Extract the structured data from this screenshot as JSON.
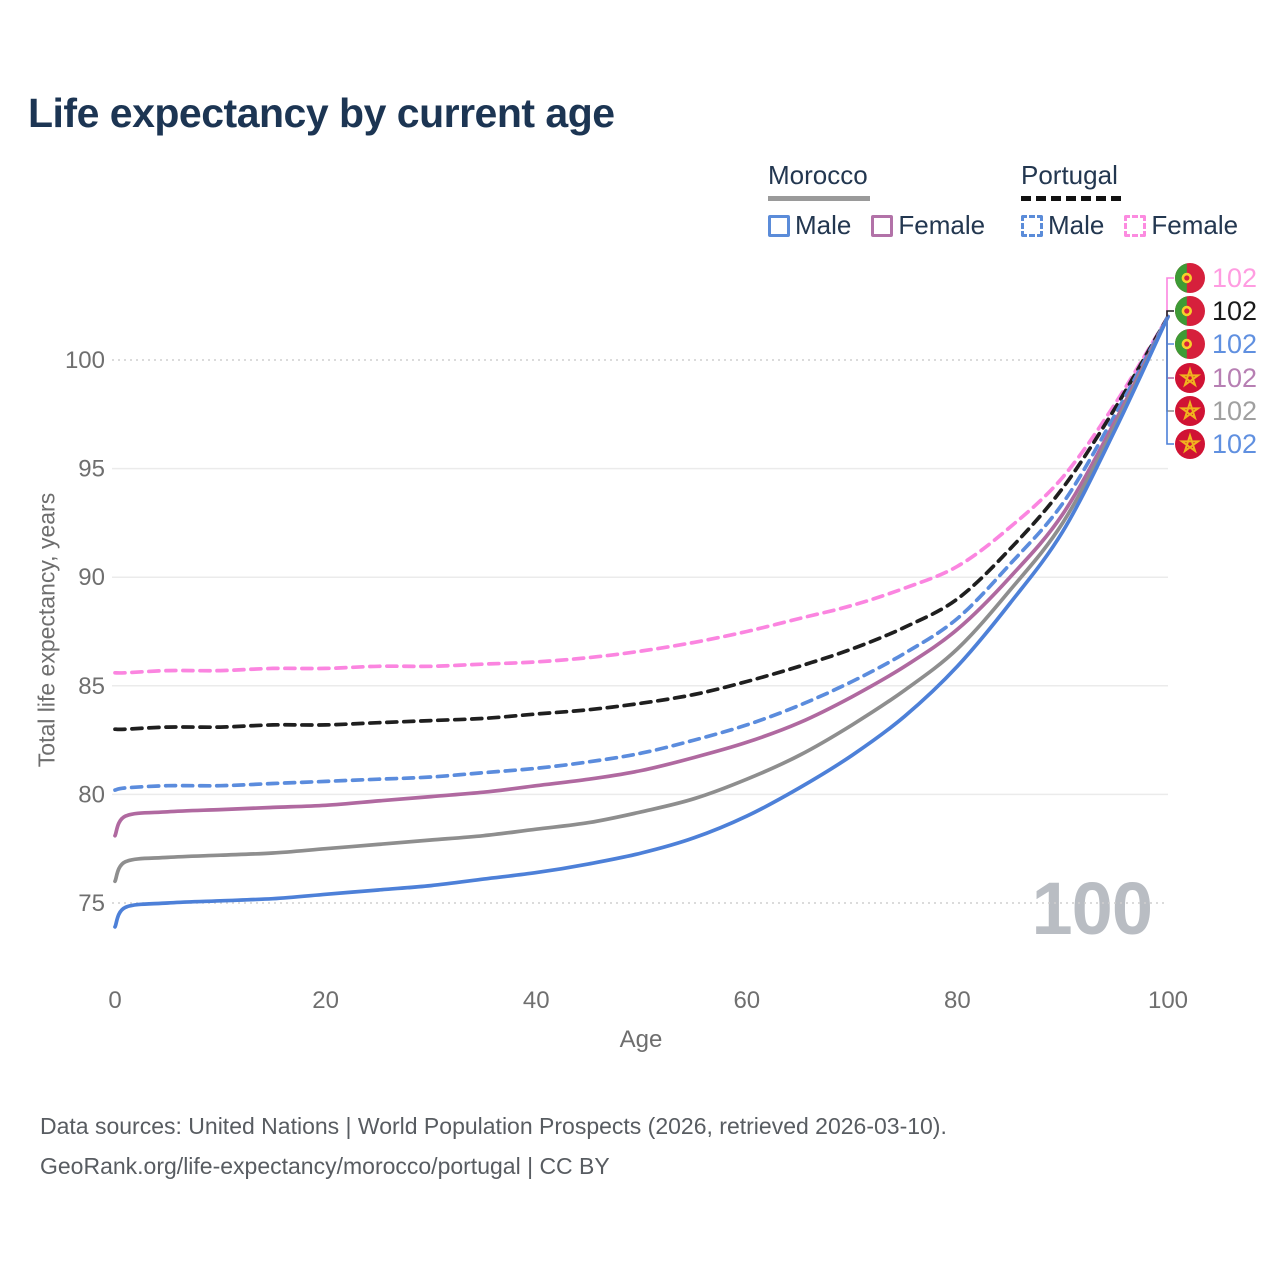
{
  "title": "Life expectancy by current age",
  "legend": {
    "morocco": {
      "label": "Morocco",
      "items": [
        {
          "label": "Male"
        },
        {
          "label": "Female"
        }
      ]
    },
    "portugal": {
      "label": "Portugal",
      "items": [
        {
          "label": "Male"
        },
        {
          "label": "Female"
        }
      ]
    }
  },
  "y_axis": {
    "title": "Total life expectancy, years"
  },
  "x_axis": {
    "title": "Age"
  },
  "watermark": "100",
  "footer": {
    "line1": "Data sources: United Nations | World Population Prospects (2026, retrieved 2026-03-10).",
    "line2": "GeoRank.org/life-expectancy/morocco/portugal | CC BY"
  },
  "colors": {
    "title_text": "#1c3553",
    "legend_text": "#233750",
    "axis_text": "#6e6e6e",
    "tick_text": "#6f6f6f",
    "gridline_solid": "#ebebeb",
    "gridline_dotted": "#cfcfcf",
    "watermark": "#b9bdc3",
    "morocco_underline": "#9a9a9a",
    "portugal_underline": "#111111"
  },
  "chart_data": {
    "type": "line",
    "title": "Life expectancy by current age",
    "xlabel": "Age",
    "ylabel": "Total life expectancy, years",
    "xlim": [
      0,
      100
    ],
    "ylim": [
      73,
      103
    ],
    "xticks": [
      0,
      20,
      40,
      60,
      80,
      100
    ],
    "yticks": [
      75,
      80,
      85,
      90,
      95,
      100
    ],
    "dotted_gridlines": [
      75,
      100
    ],
    "grid": true,
    "legend_position": "top-right",
    "x": [
      0,
      1,
      5,
      10,
      15,
      20,
      25,
      30,
      35,
      40,
      45,
      50,
      55,
      60,
      65,
      70,
      75,
      80,
      85,
      90,
      95,
      100
    ],
    "series": [
      {
        "name": "Portugal Female",
        "country": "Portugal",
        "sex": "female",
        "style": "dashed",
        "color": "#fb85e0",
        "flag": "portugal",
        "end_label": "102",
        "end_label_color": "#ff9ce1",
        "values": [
          85.6,
          85.6,
          85.7,
          85.7,
          85.8,
          85.8,
          85.9,
          85.9,
          86.0,
          86.1,
          86.3,
          86.6,
          87.0,
          87.5,
          88.1,
          88.7,
          89.5,
          90.5,
          92.3,
          94.6,
          98.0,
          102
        ]
      },
      {
        "name": "Portugal",
        "country": "Portugal",
        "sex": "all",
        "style": "dashed",
        "color": "#1f1f1f",
        "flag": "portugal",
        "end_label": "102",
        "end_label_color": "#1a1a1a",
        "values": [
          83.0,
          83.0,
          83.1,
          83.1,
          83.2,
          83.2,
          83.3,
          83.4,
          83.5,
          83.7,
          83.9,
          84.2,
          84.6,
          85.2,
          85.9,
          86.7,
          87.7,
          89.0,
          91.3,
          94.1,
          97.8,
          102
        ]
      },
      {
        "name": "Portugal Male",
        "country": "Portugal",
        "sex": "male",
        "style": "dashed",
        "color": "#5b8cdd",
        "flag": "portugal",
        "end_label": "102",
        "end_label_color": "#6090e0",
        "values": [
          80.2,
          80.3,
          80.4,
          80.4,
          80.5,
          80.6,
          80.7,
          80.8,
          81.0,
          81.2,
          81.5,
          81.9,
          82.5,
          83.2,
          84.1,
          85.2,
          86.5,
          88.1,
          90.6,
          93.4,
          97.5,
          102
        ]
      },
      {
        "name": "Morocco Female",
        "country": "Morocco",
        "sex": "female",
        "style": "solid",
        "color": "#b069a0",
        "flag": "morocco",
        "end_label": "102",
        "end_label_color": "#b77fb3",
        "values": [
          78.1,
          79.0,
          79.2,
          79.3,
          79.4,
          79.5,
          79.7,
          79.9,
          80.1,
          80.4,
          80.7,
          81.1,
          81.7,
          82.4,
          83.3,
          84.5,
          85.9,
          87.6,
          90.0,
          92.9,
          97.2,
          102
        ]
      },
      {
        "name": "Morocco",
        "country": "Morocco",
        "sex": "all",
        "style": "solid",
        "color": "#8e8e8e",
        "flag": "morocco",
        "end_label": "102",
        "end_label_color": "#a0a0a0",
        "values": [
          76.0,
          76.9,
          77.1,
          77.2,
          77.3,
          77.5,
          77.7,
          77.9,
          78.1,
          78.4,
          78.7,
          79.2,
          79.8,
          80.7,
          81.8,
          83.2,
          84.8,
          86.7,
          89.4,
          92.5,
          97.0,
          102
        ]
      },
      {
        "name": "Morocco Male",
        "country": "Morocco",
        "sex": "male",
        "style": "solid",
        "color": "#4d80d8",
        "flag": "morocco",
        "end_label": "102",
        "end_label_color": "#6090e0",
        "values": [
          73.9,
          74.8,
          75.0,
          75.1,
          75.2,
          75.4,
          75.6,
          75.8,
          76.1,
          76.4,
          76.8,
          77.3,
          78.0,
          79.0,
          80.3,
          81.8,
          83.6,
          85.9,
          88.8,
          92.1,
          96.8,
          102
        ]
      }
    ]
  }
}
